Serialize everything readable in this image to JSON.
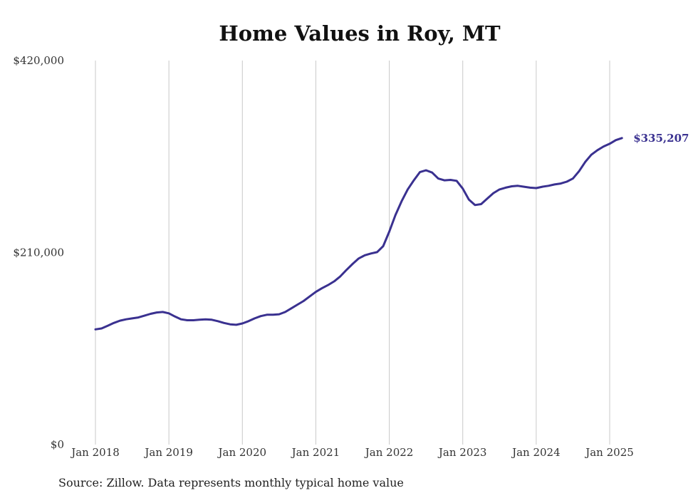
{
  "title": "Home Values in Roy, MT",
  "source": "Source: Zillow. Data represents monthly typical home value",
  "chart_data": {
    "type": "line",
    "title": "Home Values in Roy, MT",
    "xlabel": "",
    "ylabel": "",
    "ylim": [
      0,
      420000
    ],
    "yticks": [
      0,
      210000,
      420000
    ],
    "ytick_labels": [
      "$0",
      "$210,000",
      "$420,000"
    ],
    "xticks": [
      "2018-01",
      "2019-01",
      "2020-01",
      "2021-01",
      "2022-01",
      "2023-01",
      "2024-01",
      "2025-01"
    ],
    "xtick_labels": [
      "Jan 2018",
      "Jan 2019",
      "Jan 2020",
      "Jan 2021",
      "Jan 2022",
      "Jan 2023",
      "Jan 2024",
      "Jan 2025"
    ],
    "grid": "vertical",
    "series": [
      {
        "color": "#3a3190",
        "end_label": "$335,207",
        "points": [
          [
            "2018-01",
            126000
          ],
          [
            "2018-02",
            127000
          ],
          [
            "2018-03",
            130000
          ],
          [
            "2018-04",
            133000
          ],
          [
            "2018-05",
            135500
          ],
          [
            "2018-06",
            137000
          ],
          [
            "2018-07",
            138000
          ],
          [
            "2018-08",
            139000
          ],
          [
            "2018-09",
            141000
          ],
          [
            "2018-10",
            143000
          ],
          [
            "2018-11",
            144500
          ],
          [
            "2018-12",
            145000
          ],
          [
            "2019-01",
            143500
          ],
          [
            "2019-02",
            140000
          ],
          [
            "2019-03",
            137000
          ],
          [
            "2019-04",
            136000
          ],
          [
            "2019-05",
            136000
          ],
          [
            "2019-06",
            136500
          ],
          [
            "2019-07",
            137000
          ],
          [
            "2019-08",
            136500
          ],
          [
            "2019-09",
            135000
          ],
          [
            "2019-10",
            133000
          ],
          [
            "2019-11",
            131500
          ],
          [
            "2019-12",
            131000
          ],
          [
            "2020-01",
            132500
          ],
          [
            "2020-02",
            135000
          ],
          [
            "2020-03",
            138000
          ],
          [
            "2020-04",
            140500
          ],
          [
            "2020-05",
            142000
          ],
          [
            "2020-06",
            142000
          ],
          [
            "2020-07",
            142500
          ],
          [
            "2020-08",
            145000
          ],
          [
            "2020-09",
            149000
          ],
          [
            "2020-10",
            153000
          ],
          [
            "2020-11",
            157000
          ],
          [
            "2020-12",
            162000
          ],
          [
            "2021-01",
            167000
          ],
          [
            "2021-02",
            171000
          ],
          [
            "2021-03",
            174500
          ],
          [
            "2021-04",
            178500
          ],
          [
            "2021-05",
            184000
          ],
          [
            "2021-06",
            191000
          ],
          [
            "2021-07",
            197500
          ],
          [
            "2021-08",
            203500
          ],
          [
            "2021-09",
            207000
          ],
          [
            "2021-10",
            209000
          ],
          [
            "2021-11",
            210500
          ],
          [
            "2021-12",
            217000
          ],
          [
            "2022-01",
            233000
          ],
          [
            "2022-02",
            251000
          ],
          [
            "2022-03",
            266000
          ],
          [
            "2022-04",
            279000
          ],
          [
            "2022-05",
            289000
          ],
          [
            "2022-06",
            298000
          ],
          [
            "2022-07",
            300000
          ],
          [
            "2022-08",
            297500
          ],
          [
            "2022-09",
            291000
          ],
          [
            "2022-10",
            289000
          ],
          [
            "2022-11",
            289500
          ],
          [
            "2022-12",
            288500
          ],
          [
            "2023-01",
            280000
          ],
          [
            "2023-02",
            268000
          ],
          [
            "2023-03",
            262000
          ],
          [
            "2023-04",
            263000
          ],
          [
            "2023-05",
            269000
          ],
          [
            "2023-06",
            275000
          ],
          [
            "2023-07",
            279000
          ],
          [
            "2023-08",
            281000
          ],
          [
            "2023-09",
            282500
          ],
          [
            "2023-10",
            283000
          ],
          [
            "2023-11",
            282000
          ],
          [
            "2023-12",
            281000
          ],
          [
            "2024-01",
            280500
          ],
          [
            "2024-02",
            282000
          ],
          [
            "2024-03",
            283000
          ],
          [
            "2024-04",
            284500
          ],
          [
            "2024-05",
            285500
          ],
          [
            "2024-06",
            287500
          ],
          [
            "2024-07",
            291000
          ],
          [
            "2024-08",
            299000
          ],
          [
            "2024-09",
            309000
          ],
          [
            "2024-10",
            317000
          ],
          [
            "2024-11",
            322000
          ],
          [
            "2024-12",
            326000
          ],
          [
            "2025-01",
            329000
          ],
          [
            "2025-02",
            333000
          ],
          [
            "2025-03",
            335207
          ]
        ]
      }
    ]
  }
}
